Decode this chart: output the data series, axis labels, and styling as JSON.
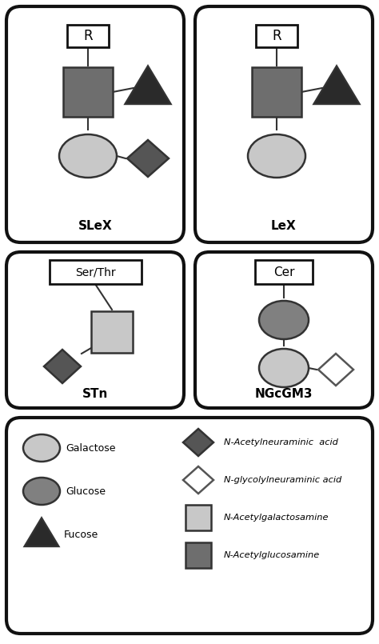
{
  "colors": {
    "light_gray": "#c8c8c8",
    "medium_gray": "#808080",
    "dark_gray": "#555555",
    "glcnac_gray": "#6e6e6e",
    "near_black": "#2a2a2a",
    "white": "#ffffff",
    "box_edge": "#111111"
  },
  "figsize": [
    4.74,
    8.05
  ],
  "dpi": 100,
  "panels": {
    "SLeX": {
      "label": "SLeX",
      "label_style": "bold"
    },
    "LeX": {
      "label": "LeX",
      "label_style": "bold"
    },
    "STn": {
      "label": "STn",
      "label_style": "bold"
    },
    "NGcGM3": {
      "label": "NGcGM3",
      "label_style": "bold"
    }
  },
  "legend_left": [
    {
      "label": "Galactose",
      "shape": "ellipse",
      "color": "#c8c8c8"
    },
    {
      "label": "Glucose",
      "shape": "ellipse",
      "color": "#707070"
    },
    {
      "label": "Fucose",
      "shape": "triangle",
      "color": "#2a2a2a"
    }
  ],
  "legend_right": [
    {
      "label": "N-Acetylneuraminic  acid",
      "shape": "diamond",
      "color": "#555555",
      "open": false
    },
    {
      "label": "N-glycolylneuraminic acid",
      "shape": "diamond",
      "color": "#ffffff",
      "open": true
    },
    {
      "label": "N-Acetylgalactosamine",
      "shape": "square",
      "color": "#d0d0d0",
      "open": false
    },
    {
      "label": "N-Acetylglucosamine",
      "shape": "square",
      "color": "#6e6e6e",
      "open": false
    }
  ]
}
